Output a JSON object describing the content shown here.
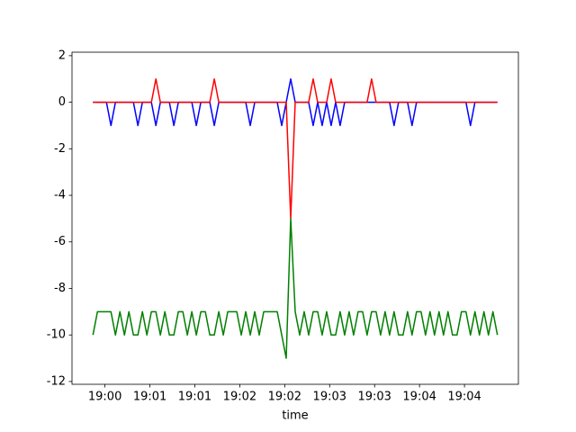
{
  "chart_data": {
    "type": "line",
    "xlabel": "time",
    "x": [
      "19:00:22",
      "19:00:25",
      "19:00:28",
      "19:00:31",
      "19:00:34",
      "19:00:37",
      "19:00:40",
      "19:00:43",
      "19:00:46",
      "19:00:49",
      "19:00:52",
      "19:00:55",
      "19:00:58",
      "19:01:01",
      "19:01:04",
      "19:01:07",
      "19:01:10",
      "19:01:13",
      "19:01:16",
      "19:01:19",
      "19:01:22",
      "19:01:25",
      "19:01:28",
      "19:01:31",
      "19:01:34",
      "19:01:37",
      "19:01:40",
      "19:01:43",
      "19:01:46",
      "19:01:49",
      "19:01:52",
      "19:01:55",
      "19:01:58",
      "19:02:01",
      "19:02:04",
      "19:02:07",
      "19:02:10",
      "19:02:13",
      "19:02:16",
      "19:02:19",
      "19:02:22",
      "19:02:25",
      "19:02:28",
      "19:02:31",
      "19:02:34",
      "19:02:37",
      "19:02:40",
      "19:02:43",
      "19:02:46",
      "19:02:49",
      "19:02:52",
      "19:02:55",
      "19:02:58",
      "19:03:01",
      "19:03:04",
      "19:03:07",
      "19:03:10",
      "19:03:13",
      "19:03:16",
      "19:03:19",
      "19:03:22",
      "19:03:25",
      "19:03:28",
      "19:03:31",
      "19:03:34",
      "19:03:37",
      "19:03:40",
      "19:03:43",
      "19:03:46",
      "19:03:49",
      "19:03:52",
      "19:03:55",
      "19:03:58",
      "19:04:01",
      "19:04:04",
      "19:04:07",
      "19:04:10",
      "19:04:13",
      "19:04:16",
      "19:04:19",
      "19:04:22",
      "19:04:25",
      "19:04:28",
      "19:04:31",
      "19:04:34",
      "19:04:37",
      "19:04:40",
      "19:04:43",
      "19:04:46",
      "19:04:49",
      "19:04:52"
    ],
    "series": [
      {
        "color": "#0000ff",
        "values": [
          0,
          0,
          0,
          0,
          -1,
          0,
          0,
          0,
          0,
          0,
          -1,
          0,
          0,
          0,
          -1,
          0,
          0,
          0,
          -1,
          0,
          0,
          0,
          0,
          -1,
          0,
          0,
          0,
          -1,
          0,
          0,
          0,
          0,
          0,
          0,
          0,
          -1,
          0,
          0,
          0,
          0,
          0,
          0,
          -1,
          0,
          1,
          0,
          0,
          0,
          0,
          -1,
          0,
          -1,
          0,
          -1,
          0,
          -1,
          0,
          0,
          0,
          0,
          0,
          0,
          0,
          0,
          0,
          0,
          0,
          -1,
          0,
          0,
          0,
          -1,
          0,
          0,
          0,
          0,
          0,
          0,
          0,
          0,
          0,
          0,
          0,
          0,
          -1,
          0,
          0,
          0,
          0,
          0,
          0
        ]
      },
      {
        "color": "#ff0000",
        "values": [
          0,
          0,
          0,
          0,
          0,
          0,
          0,
          0,
          0,
          0,
          0,
          0,
          0,
          0,
          1,
          0,
          0,
          0,
          0,
          0,
          0,
          0,
          0,
          0,
          0,
          0,
          0,
          1,
          0,
          0,
          0,
          0,
          0,
          0,
          0,
          0,
          0,
          0,
          0,
          0,
          0,
          0,
          0,
          0,
          -5,
          0,
          0,
          0,
          0,
          1,
          0,
          0,
          0,
          1,
          0,
          0,
          0,
          0,
          0,
          0,
          0,
          0,
          1,
          0,
          0,
          0,
          0,
          0,
          0,
          0,
          0,
          0,
          0,
          0,
          0,
          0,
          0,
          0,
          0,
          0,
          0,
          0,
          0,
          0,
          0,
          0,
          0,
          0,
          0,
          0,
          0
        ]
      },
      {
        "color": "#008000",
        "values": [
          -10,
          -9,
          -9,
          -9,
          -9,
          -10,
          -9,
          -10,
          -9,
          -10,
          -10,
          -9,
          -10,
          -9,
          -9,
          -10,
          -9,
          -10,
          -10,
          -9,
          -9,
          -10,
          -9,
          -10,
          -9,
          -9,
          -10,
          -10,
          -9,
          -10,
          -9,
          -9,
          -9,
          -10,
          -9,
          -10,
          -9,
          -10,
          -9,
          -9,
          -9,
          -9,
          -10,
          -11,
          -5,
          -9,
          -10,
          -9,
          -10,
          -9,
          -9,
          -10,
          -9,
          -10,
          -10,
          -9,
          -10,
          -9,
          -10,
          -9,
          -9,
          -10,
          -9,
          -9,
          -10,
          -9,
          -10,
          -9,
          -10,
          -10,
          -9,
          -10,
          -9,
          -9,
          -10,
          -9,
          -10,
          -9,
          -10,
          -9,
          -10,
          -10,
          -9,
          -9,
          -10,
          -9,
          -10,
          -9,
          -10,
          -9,
          -10
        ]
      }
    ],
    "xlim": [
      "19:00:08",
      "19:05:06"
    ],
    "xticks": [
      {
        "value": "19:00:30",
        "label": "19:00"
      },
      {
        "value": "19:01:00",
        "label": "19:01"
      },
      {
        "value": "19:01:30",
        "label": "19:01"
      },
      {
        "value": "19:02:00",
        "label": "19:02"
      },
      {
        "value": "19:02:30",
        "label": "19:02"
      },
      {
        "value": "19:03:00",
        "label": "19:03"
      },
      {
        "value": "19:03:30",
        "label": "19:03"
      },
      {
        "value": "19:04:00",
        "label": "19:04"
      },
      {
        "value": "19:04:30",
        "label": "19:04"
      }
    ],
    "ylim": [
      -12.12,
      2.15
    ],
    "yticks": [
      -12,
      -10,
      -8,
      -6,
      -4,
      -2,
      0,
      2
    ]
  }
}
